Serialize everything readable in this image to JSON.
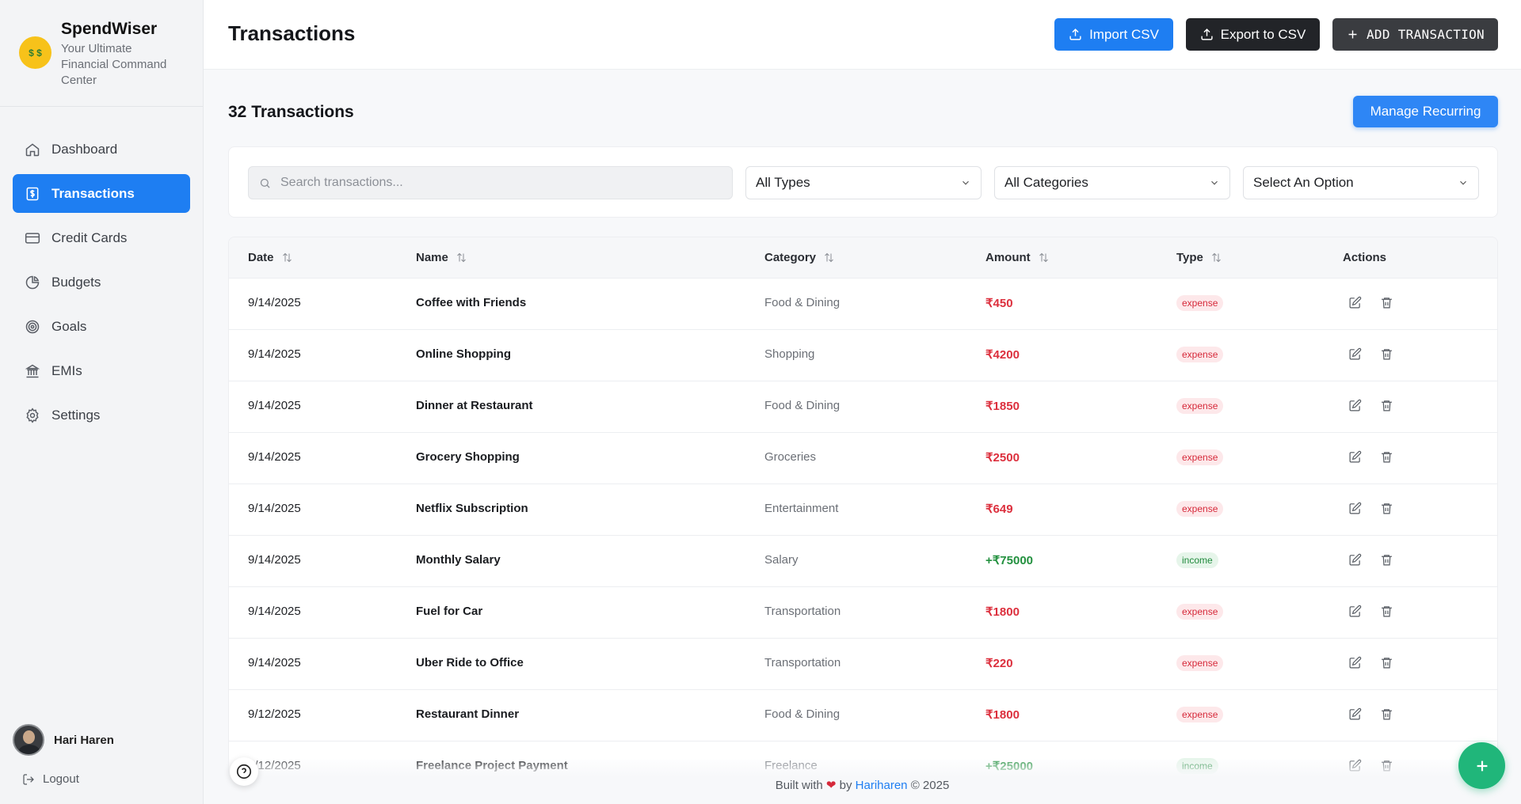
{
  "brand": {
    "name": "SpendWiser",
    "tagline": "Your Ultimate Financial Command Center",
    "logo_icon": "money-face-icon"
  },
  "sidebar": {
    "items": [
      {
        "label": "Dashboard",
        "icon": "home-icon",
        "active": false
      },
      {
        "label": "Transactions",
        "icon": "dollar-square-icon",
        "active": true
      },
      {
        "label": "Credit Cards",
        "icon": "credit-card-icon",
        "active": false
      },
      {
        "label": "Budgets",
        "icon": "pie-chart-icon",
        "active": false
      },
      {
        "label": "Goals",
        "icon": "target-icon",
        "active": false
      },
      {
        "label": "EMIs",
        "icon": "bank-icon",
        "active": false
      },
      {
        "label": "Settings",
        "icon": "gear-icon",
        "active": false
      }
    ],
    "user_name": "Hari Haren",
    "logout_label": "Logout"
  },
  "header": {
    "title": "Transactions",
    "import_label": "Import CSV",
    "export_label": "Export to CSV",
    "add_label": "ADD TRANSACTION"
  },
  "summary": {
    "count_label": "32 Transactions",
    "manage_recurring_label": "Manage Recurring"
  },
  "filters": {
    "search_placeholder": "Search transactions...",
    "type_select": "All Types",
    "category_select": "All Categories",
    "option_select": "Select An Option"
  },
  "table": {
    "columns": [
      "Date",
      "Name",
      "Category",
      "Amount",
      "Type",
      "Actions"
    ],
    "rows": [
      {
        "date": "9/14/2025",
        "name": "Coffee with Friends",
        "category": "Food & Dining",
        "amount": "₹450",
        "type": "expense"
      },
      {
        "date": "9/14/2025",
        "name": "Online Shopping",
        "category": "Shopping",
        "amount": "₹4200",
        "type": "expense"
      },
      {
        "date": "9/14/2025",
        "name": "Dinner at Restaurant",
        "category": "Food & Dining",
        "amount": "₹1850",
        "type": "expense"
      },
      {
        "date": "9/14/2025",
        "name": "Grocery Shopping",
        "category": "Groceries",
        "amount": "₹2500",
        "type": "expense"
      },
      {
        "date": "9/14/2025",
        "name": "Netflix Subscription",
        "category": "Entertainment",
        "amount": "₹649",
        "type": "expense"
      },
      {
        "date": "9/14/2025",
        "name": "Monthly Salary",
        "category": "Salary",
        "amount": "+₹75000",
        "type": "income"
      },
      {
        "date": "9/14/2025",
        "name": "Fuel for Car",
        "category": "Transportation",
        "amount": "₹1800",
        "type": "expense"
      },
      {
        "date": "9/14/2025",
        "name": "Uber Ride to Office",
        "category": "Transportation",
        "amount": "₹220",
        "type": "expense"
      },
      {
        "date": "9/12/2025",
        "name": "Restaurant Dinner",
        "category": "Food & Dining",
        "amount": "₹1800",
        "type": "expense"
      },
      {
        "date": "9/12/2025",
        "name": "Freelance Project Payment",
        "category": "Freelance",
        "amount": "+₹25000",
        "type": "income"
      }
    ]
  },
  "footer": {
    "prefix": "Built with",
    "by": "by",
    "author": "Hariharen",
    "suffix": "© 2025"
  },
  "colors": {
    "accent": "#1e7ef2",
    "expense": "#dc2f3d",
    "income": "#23913f",
    "fab": "#20b67a"
  }
}
